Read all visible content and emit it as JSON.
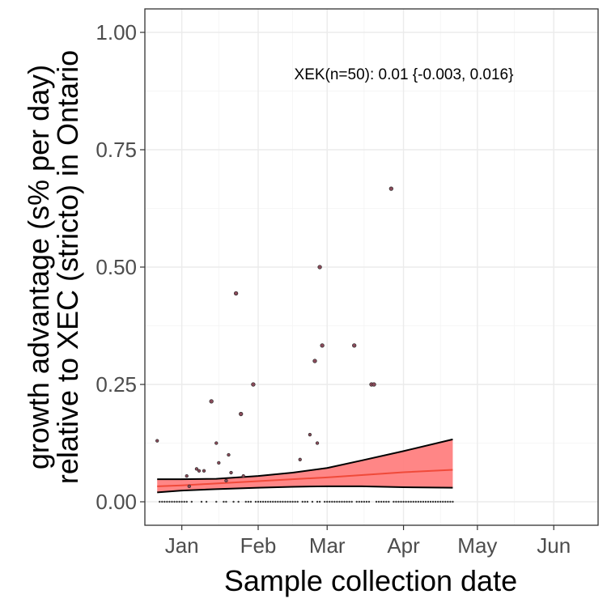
{
  "chart_data": {
    "type": "scatter",
    "xlabel": "Sample collection date",
    "ylabel_lines": [
      "growth advantage (s% per day)",
      "relative to XEC (stricto) in Ontario"
    ],
    "annotation": "XEK(n=50): 0.01 {-0.003, 0.016}",
    "x_range": [
      "2024-12-17",
      "2025-06-19"
    ],
    "ylim": [
      -0.05,
      1.05
    ],
    "x_ticks": [
      {
        "date": "2025-01-01",
        "label": "Jan"
      },
      {
        "date": "2025-02-01",
        "label": "Feb"
      },
      {
        "date": "2025-03-01",
        "label": "Mar"
      },
      {
        "date": "2025-04-01",
        "label": "Apr"
      },
      {
        "date": "2025-05-01",
        "label": "May"
      },
      {
        "date": "2025-06-01",
        "label": "Jun"
      }
    ],
    "y_ticks": [
      0.0,
      0.25,
      0.5,
      0.75,
      1.0
    ],
    "y_tick_labels": [
      "0.00",
      "0.25",
      "0.50",
      "0.75",
      "1.00"
    ],
    "grid": true,
    "colors": {
      "band": "#ff8080",
      "fit_line": "#f04a3a",
      "bounds": "#000000",
      "points": "#8a4b5a"
    },
    "points": [
      {
        "date": "2024-12-22",
        "y": 0.13
      },
      {
        "date": "2025-01-03",
        "y": 0.055
      },
      {
        "date": "2025-01-04",
        "y": 0.033
      },
      {
        "date": "2025-01-07",
        "y": 0.07
      },
      {
        "date": "2025-01-08",
        "y": 0.066
      },
      {
        "date": "2025-01-10",
        "y": 0.066
      },
      {
        "date": "2025-01-13",
        "y": 0.214
      },
      {
        "date": "2025-01-15",
        "y": 0.125
      },
      {
        "date": "2025-01-16",
        "y": 0.083
      },
      {
        "date": "2025-01-19",
        "y": 0.045
      },
      {
        "date": "2025-01-20",
        "y": 0.1
      },
      {
        "date": "2025-01-21",
        "y": 0.062
      },
      {
        "date": "2025-01-23",
        "y": 0.444
      },
      {
        "date": "2025-01-25",
        "y": 0.187
      },
      {
        "date": "2025-01-26",
        "y": 0.055
      },
      {
        "date": "2025-01-30",
        "y": 0.25
      },
      {
        "date": "2025-02-18",
        "y": 0.09
      },
      {
        "date": "2025-02-22",
        "y": 0.143
      },
      {
        "date": "2025-02-24",
        "y": 0.3
      },
      {
        "date": "2025-02-25",
        "y": 0.125
      },
      {
        "date": "2025-02-26",
        "y": 0.5
      },
      {
        "date": "2025-02-27",
        "y": 0.333
      },
      {
        "date": "2025-03-12",
        "y": 0.333
      },
      {
        "date": "2025-03-19",
        "y": 0.25
      },
      {
        "date": "2025-03-20",
        "y": 0.25
      },
      {
        "date": "2025-03-27",
        "y": 0.667
      }
    ],
    "zero_points_dates": [
      "2024-12-23",
      "2024-12-24",
      "2024-12-25",
      "2024-12-26",
      "2024-12-27",
      "2024-12-28",
      "2024-12-29",
      "2024-12-30",
      "2024-12-31",
      "2025-01-01",
      "2025-01-02",
      "2025-01-03",
      "2025-01-05",
      "2025-01-09",
      "2025-01-11",
      "2025-01-15",
      "2025-01-18",
      "2025-01-19",
      "2025-01-22",
      "2025-01-24",
      "2025-01-27",
      "2025-01-28",
      "2025-01-29",
      "2025-01-31",
      "2025-02-01",
      "2025-02-02",
      "2025-02-03",
      "2025-02-04",
      "2025-02-05",
      "2025-02-06",
      "2025-02-07",
      "2025-02-08",
      "2025-02-09",
      "2025-02-10",
      "2025-02-11",
      "2025-02-12",
      "2025-02-13",
      "2025-02-14",
      "2025-02-15",
      "2025-02-16",
      "2025-02-17",
      "2025-02-19",
      "2025-02-20",
      "2025-02-21",
      "2025-02-23",
      "2025-02-25",
      "2025-02-26",
      "2025-02-28",
      "2025-03-01",
      "2025-03-02",
      "2025-03-03",
      "2025-03-04",
      "2025-03-05",
      "2025-03-06",
      "2025-03-07",
      "2025-03-08",
      "2025-03-09",
      "2025-03-10",
      "2025-03-11",
      "2025-03-13",
      "2025-03-14",
      "2025-03-15",
      "2025-03-16",
      "2025-03-17",
      "2025-03-18",
      "2025-03-21",
      "2025-03-22",
      "2025-03-23",
      "2025-03-24",
      "2025-03-25",
      "2025-03-26",
      "2025-03-28",
      "2025-03-29",
      "2025-03-30",
      "2025-03-31",
      "2025-04-01",
      "2025-04-02",
      "2025-04-03",
      "2025-04-04",
      "2025-04-05",
      "2025-04-06",
      "2025-04-07",
      "2025-04-08",
      "2025-04-09",
      "2025-04-10",
      "2025-04-11",
      "2025-04-12",
      "2025-04-13",
      "2025-04-14",
      "2025-04-15",
      "2025-04-16",
      "2025-04-17",
      "2025-04-18",
      "2025-04-19",
      "2025-04-20",
      "2025-04-21"
    ],
    "fit": [
      {
        "date": "2024-12-22",
        "fit": 0.033,
        "lower": 0.02,
        "upper": 0.048
      },
      {
        "date": "2025-01-01",
        "fit": 0.035,
        "lower": 0.024,
        "upper": 0.048
      },
      {
        "date": "2025-01-15",
        "fit": 0.039,
        "lower": 0.027,
        "upper": 0.049
      },
      {
        "date": "2025-02-01",
        "fit": 0.044,
        "lower": 0.03,
        "upper": 0.055
      },
      {
        "date": "2025-02-15",
        "fit": 0.048,
        "lower": 0.032,
        "upper": 0.062
      },
      {
        "date": "2025-03-01",
        "fit": 0.052,
        "lower": 0.033,
        "upper": 0.072
      },
      {
        "date": "2025-03-15",
        "fit": 0.057,
        "lower": 0.033,
        "upper": 0.088
      },
      {
        "date": "2025-04-01",
        "fit": 0.063,
        "lower": 0.031,
        "upper": 0.108
      },
      {
        "date": "2025-04-21",
        "fit": 0.068,
        "lower": 0.03,
        "upper": 0.133
      }
    ]
  }
}
